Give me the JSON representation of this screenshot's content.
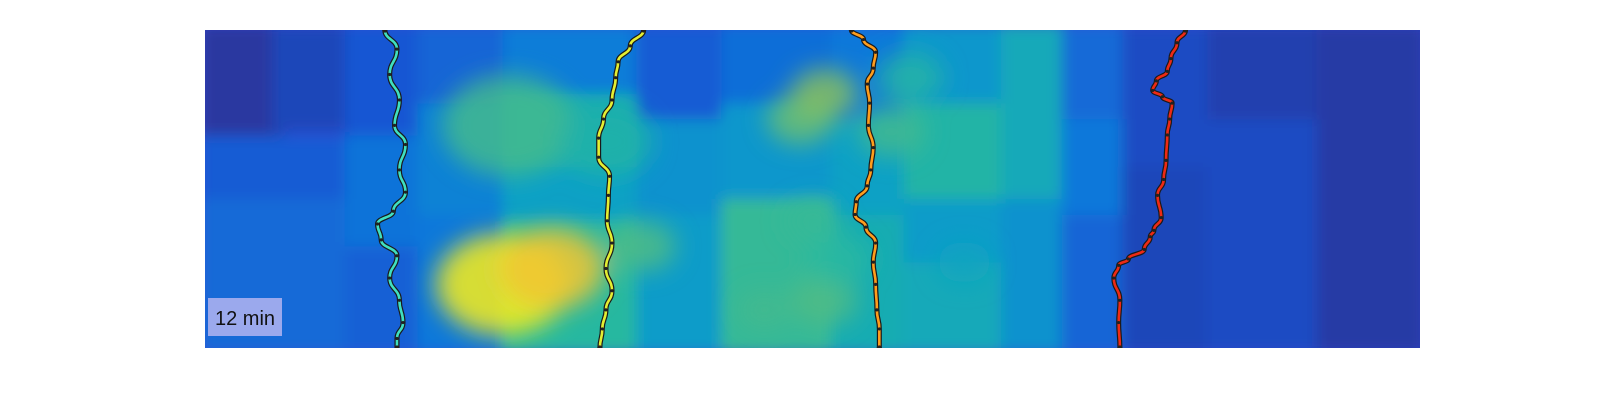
{
  "chart_data": {
    "type": "heatmap",
    "colormap": "parula",
    "legend": "none",
    "grid": false,
    "time_label": "12 min",
    "heatmap_blocks": [
      {
        "x": [
          0.0,
          0.06
        ],
        "y": [
          0.0,
          0.35
        ],
        "v": 0.05
      },
      {
        "x": [
          0.06,
          0.12
        ],
        "y": [
          0.0,
          0.3
        ],
        "v": 0.1
      },
      {
        "x": [
          0.0,
          0.12
        ],
        "y": [
          0.35,
          0.55
        ],
        "v": 0.18
      },
      {
        "x": [
          0.0,
          0.12
        ],
        "y": [
          0.55,
          1.0
        ],
        "v": 0.24
      },
      {
        "x": [
          0.12,
          0.18
        ],
        "y": [
          0.0,
          0.35
        ],
        "v": 0.16
      },
      {
        "x": [
          0.12,
          0.18
        ],
        "y": [
          0.35,
          0.7
        ],
        "v": 0.28
      },
      {
        "x": [
          0.12,
          0.18
        ],
        "y": [
          0.7,
          1.0
        ],
        "v": 0.2
      },
      {
        "x": [
          0.18,
          0.25
        ],
        "y": [
          0.0,
          0.25
        ],
        "v": 0.22
      },
      {
        "x": [
          0.18,
          0.25
        ],
        "y": [
          0.25,
          0.6
        ],
        "v": 0.34
      },
      {
        "x": [
          0.18,
          0.25
        ],
        "y": [
          0.6,
          1.0
        ],
        "v": 0.3
      },
      {
        "x": [
          0.25,
          0.36
        ],
        "y": [
          0.0,
          0.22
        ],
        "v": 0.32
      },
      {
        "x": [
          0.25,
          0.36
        ],
        "y": [
          0.22,
          0.45
        ],
        "v": 0.52
      },
      {
        "x": [
          0.25,
          0.36
        ],
        "y": [
          0.45,
          0.62
        ],
        "v": 0.46
      },
      {
        "x": [
          0.25,
          0.36
        ],
        "y": [
          0.62,
          1.0
        ],
        "v": 0.58
      },
      {
        "x": [
          0.36,
          0.43
        ],
        "y": [
          0.0,
          0.3
        ],
        "v": 0.18
      },
      {
        "x": [
          0.36,
          0.43
        ],
        "y": [
          0.3,
          0.6
        ],
        "v": 0.4
      },
      {
        "x": [
          0.36,
          0.43
        ],
        "y": [
          0.6,
          1.0
        ],
        "v": 0.44
      },
      {
        "x": [
          0.43,
          0.52
        ],
        "y": [
          0.0,
          0.25
        ],
        "v": 0.26
      },
      {
        "x": [
          0.43,
          0.52
        ],
        "y": [
          0.25,
          0.55
        ],
        "v": 0.42
      },
      {
        "x": [
          0.43,
          0.52
        ],
        "y": [
          0.55,
          1.0
        ],
        "v": 0.6
      },
      {
        "x": [
          0.52,
          0.58
        ],
        "y": [
          0.0,
          0.3
        ],
        "v": 0.3
      },
      {
        "x": [
          0.52,
          0.58
        ],
        "y": [
          0.3,
          0.6
        ],
        "v": 0.46
      },
      {
        "x": [
          0.52,
          0.58
        ],
        "y": [
          0.6,
          1.0
        ],
        "v": 0.52
      },
      {
        "x": [
          0.58,
          0.66
        ],
        "y": [
          0.0,
          0.25
        ],
        "v": 0.42
      },
      {
        "x": [
          0.58,
          0.66
        ],
        "y": [
          0.25,
          0.55
        ],
        "v": 0.56
      },
      {
        "x": [
          0.58,
          0.66
        ],
        "y": [
          0.55,
          0.75
        ],
        "v": 0.44
      },
      {
        "x": [
          0.58,
          0.66
        ],
        "y": [
          0.75,
          1.0
        ],
        "v": 0.5
      },
      {
        "x": [
          0.66,
          0.71
        ],
        "y": [
          0.0,
          0.55
        ],
        "v": 0.5
      },
      {
        "x": [
          0.66,
          0.71
        ],
        "y": [
          0.55,
          1.0
        ],
        "v": 0.4
      },
      {
        "x": [
          0.71,
          0.76
        ],
        "y": [
          0.0,
          0.3
        ],
        "v": 0.24
      },
      {
        "x": [
          0.71,
          0.76
        ],
        "y": [
          0.3,
          0.6
        ],
        "v": 0.3
      },
      {
        "x": [
          0.71,
          0.76
        ],
        "y": [
          0.6,
          1.0
        ],
        "v": 0.22
      },
      {
        "x": [
          0.76,
          0.83
        ],
        "y": [
          0.0,
          0.45
        ],
        "v": 0.12
      },
      {
        "x": [
          0.76,
          0.83
        ],
        "y": [
          0.45,
          1.0
        ],
        "v": 0.1
      },
      {
        "x": [
          0.83,
          0.92
        ],
        "y": [
          0.0,
          0.3
        ],
        "v": 0.08
      },
      {
        "x": [
          0.83,
          0.92
        ],
        "y": [
          0.3,
          1.0
        ],
        "v": 0.12
      },
      {
        "x": [
          0.92,
          1.0
        ],
        "y": [
          0.0,
          1.0
        ],
        "v": 0.06
      }
    ],
    "heatmap_spots": [
      {
        "cx": 0.25,
        "cy": 0.3,
        "r": 0.1,
        "v": 0.62
      },
      {
        "cx": 0.33,
        "cy": 0.35,
        "r": 0.07,
        "v": 0.55
      },
      {
        "cx": 0.245,
        "cy": 0.8,
        "r": 0.1,
        "v": 0.98
      },
      {
        "cx": 0.285,
        "cy": 0.75,
        "r": 0.08,
        "v": 0.9
      },
      {
        "cx": 0.36,
        "cy": 0.68,
        "r": 0.05,
        "v": 0.64
      },
      {
        "cx": 0.46,
        "cy": 0.88,
        "r": 0.04,
        "v": 0.62
      },
      {
        "cx": 0.51,
        "cy": 0.85,
        "r": 0.05,
        "v": 0.64
      },
      {
        "cx": 0.5,
        "cy": 0.6,
        "r": 0.04,
        "v": 0.6
      },
      {
        "cx": 0.49,
        "cy": 0.28,
        "r": 0.05,
        "v": 0.68
      },
      {
        "cx": 0.51,
        "cy": 0.2,
        "r": 0.05,
        "v": 0.72
      },
      {
        "cx": 0.565,
        "cy": 0.32,
        "r": 0.05,
        "v": 0.62
      },
      {
        "cx": 0.58,
        "cy": 0.15,
        "r": 0.05,
        "v": 0.56
      },
      {
        "cx": 0.52,
        "cy": 0.72,
        "r": 0.05,
        "v": 0.58
      },
      {
        "cx": 0.625,
        "cy": 0.73,
        "r": 0.04,
        "v": 0.48
      }
    ],
    "paths": [
      {
        "color": "#3fe0c0",
        "points": [
          [
            0.148,
            0.0
          ],
          [
            0.158,
            0.06
          ],
          [
            0.152,
            0.14
          ],
          [
            0.16,
            0.22
          ],
          [
            0.156,
            0.3
          ],
          [
            0.165,
            0.36
          ],
          [
            0.16,
            0.44
          ],
          [
            0.165,
            0.51
          ],
          [
            0.155,
            0.57
          ],
          [
            0.142,
            0.61
          ],
          [
            0.145,
            0.66
          ],
          [
            0.158,
            0.71
          ],
          [
            0.152,
            0.78
          ],
          [
            0.16,
            0.85
          ],
          [
            0.163,
            0.92
          ],
          [
            0.158,
            0.97
          ],
          [
            0.158,
            1.0
          ]
        ]
      },
      {
        "color": "#e4ef32",
        "points": [
          [
            0.361,
            0.0
          ],
          [
            0.35,
            0.05
          ],
          [
            0.34,
            0.1
          ],
          [
            0.338,
            0.15
          ],
          [
            0.335,
            0.22
          ],
          [
            0.328,
            0.28
          ],
          [
            0.324,
            0.34
          ],
          [
            0.324,
            0.4
          ],
          [
            0.333,
            0.46
          ],
          [
            0.332,
            0.52
          ],
          [
            0.331,
            0.6
          ],
          [
            0.335,
            0.67
          ],
          [
            0.33,
            0.75
          ],
          [
            0.335,
            0.82
          ],
          [
            0.33,
            0.88
          ],
          [
            0.327,
            0.94
          ],
          [
            0.325,
            1.0
          ]
        ]
      },
      {
        "color": "#ff9d1c",
        "points": [
          [
            0.532,
            0.0
          ],
          [
            0.542,
            0.03
          ],
          [
            0.552,
            0.07
          ],
          [
            0.55,
            0.12
          ],
          [
            0.545,
            0.17
          ],
          [
            0.547,
            0.23
          ],
          [
            0.546,
            0.3
          ],
          [
            0.55,
            0.37
          ],
          [
            0.548,
            0.44
          ],
          [
            0.545,
            0.49
          ],
          [
            0.536,
            0.54
          ],
          [
            0.535,
            0.58
          ],
          [
            0.544,
            0.62
          ],
          [
            0.552,
            0.67
          ],
          [
            0.55,
            0.73
          ],
          [
            0.552,
            0.8
          ],
          [
            0.553,
            0.88
          ],
          [
            0.555,
            0.94
          ],
          [
            0.555,
            1.0
          ]
        ]
      },
      {
        "color": "#ee2a14",
        "points": [
          [
            0.807,
            0.0
          ],
          [
            0.8,
            0.04
          ],
          [
            0.795,
            0.09
          ],
          [
            0.792,
            0.13
          ],
          [
            0.783,
            0.16
          ],
          [
            0.78,
            0.19
          ],
          [
            0.788,
            0.21
          ],
          [
            0.796,
            0.23
          ],
          [
            0.794,
            0.28
          ],
          [
            0.792,
            0.33
          ],
          [
            0.791,
            0.41
          ],
          [
            0.789,
            0.47
          ],
          [
            0.784,
            0.52
          ],
          [
            0.787,
            0.59
          ],
          [
            0.781,
            0.63
          ],
          [
            0.778,
            0.65
          ],
          [
            0.773,
            0.69
          ],
          [
            0.76,
            0.72
          ],
          [
            0.752,
            0.74
          ],
          [
            0.748,
            0.78
          ],
          [
            0.753,
            0.85
          ],
          [
            0.752,
            0.92
          ],
          [
            0.753,
            1.0
          ]
        ]
      }
    ]
  }
}
